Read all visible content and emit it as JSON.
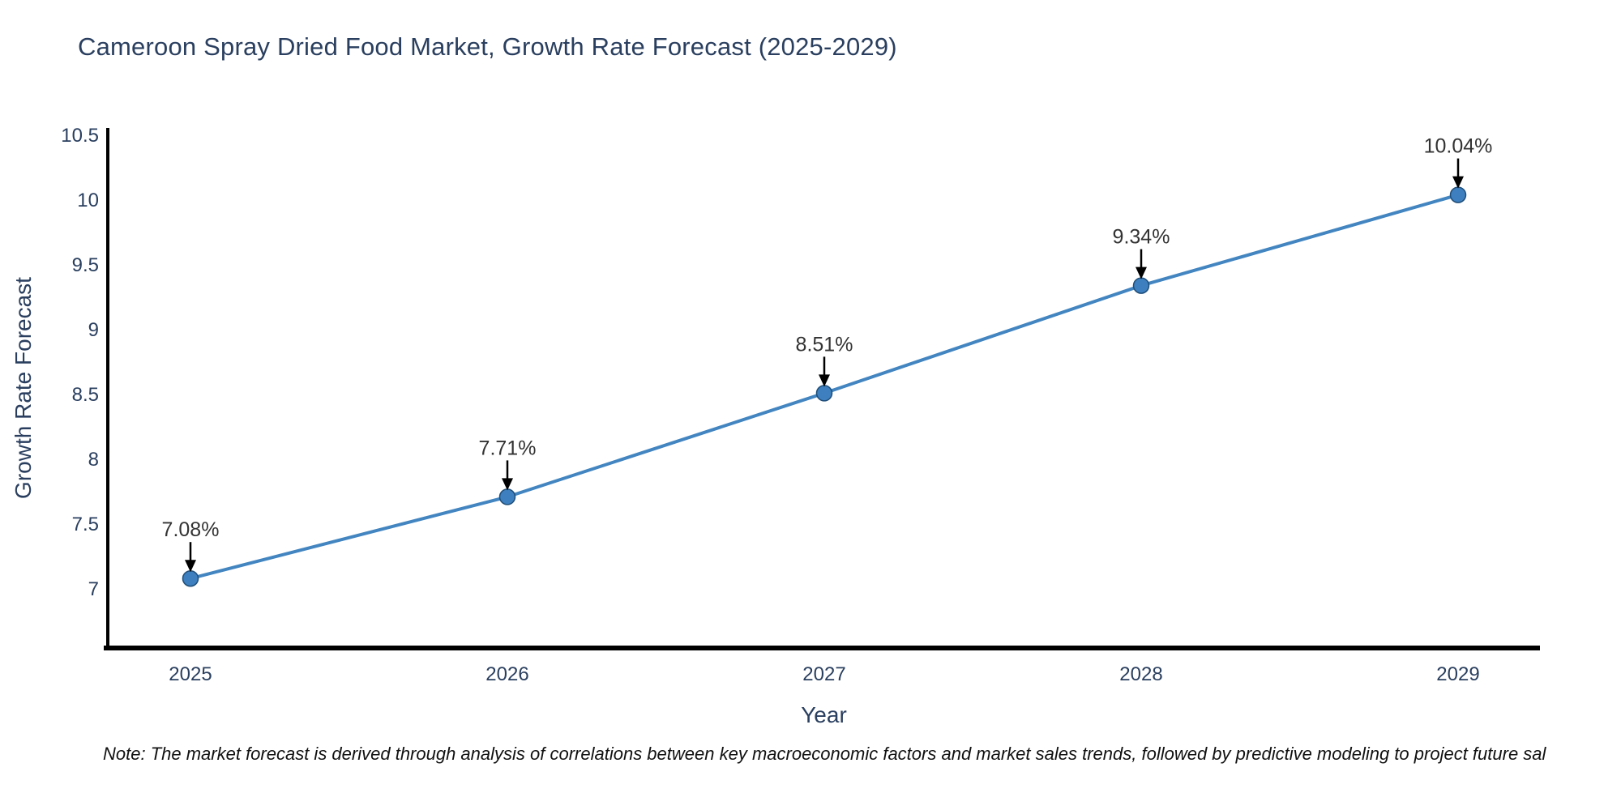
{
  "page": {
    "background": "#ffffff"
  },
  "chart_data": {
    "type": "line",
    "title": "Cameroon Spray Dried Food Market, Growth Rate Forecast (2025-2029)",
    "xlabel": "Year",
    "ylabel": "Growth Rate Forecast",
    "x": [
      "2025",
      "2026",
      "2027",
      "2028",
      "2029"
    ],
    "series": [
      {
        "name": "Growth Rate Forecast",
        "values": [
          7.08,
          7.71,
          8.51,
          9.34,
          10.04
        ]
      }
    ],
    "point_labels": [
      "7.08%",
      "7.71%",
      "8.51%",
      "9.34%",
      "10.04%"
    ],
    "yticks": [
      7,
      7.5,
      8,
      8.5,
      9,
      9.5,
      10,
      10.5
    ],
    "ytick_labels": [
      "7",
      "7.5",
      "8",
      "8.5",
      "9",
      "9.5",
      "10",
      "10.5"
    ],
    "ylim": [
      6.5,
      10.55
    ],
    "grid": false,
    "legend": "none",
    "annotation_arrow": "down",
    "colors": {
      "line": "#4285c0",
      "marker_fill": "#3d7fbf",
      "marker_edge": "#1f4e79",
      "axis": "#000000",
      "tick_text": "#2a3f5f",
      "axis_title_text": "#2a3f5f",
      "title_text": "#2a3f5f",
      "annotation_text": "#333333",
      "arrow": "#000000"
    }
  },
  "footnote": "Note: The market forecast is derived through analysis of correlations between key macroeconomic factors and market sales trends, followed by predictive modeling to project future sal"
}
